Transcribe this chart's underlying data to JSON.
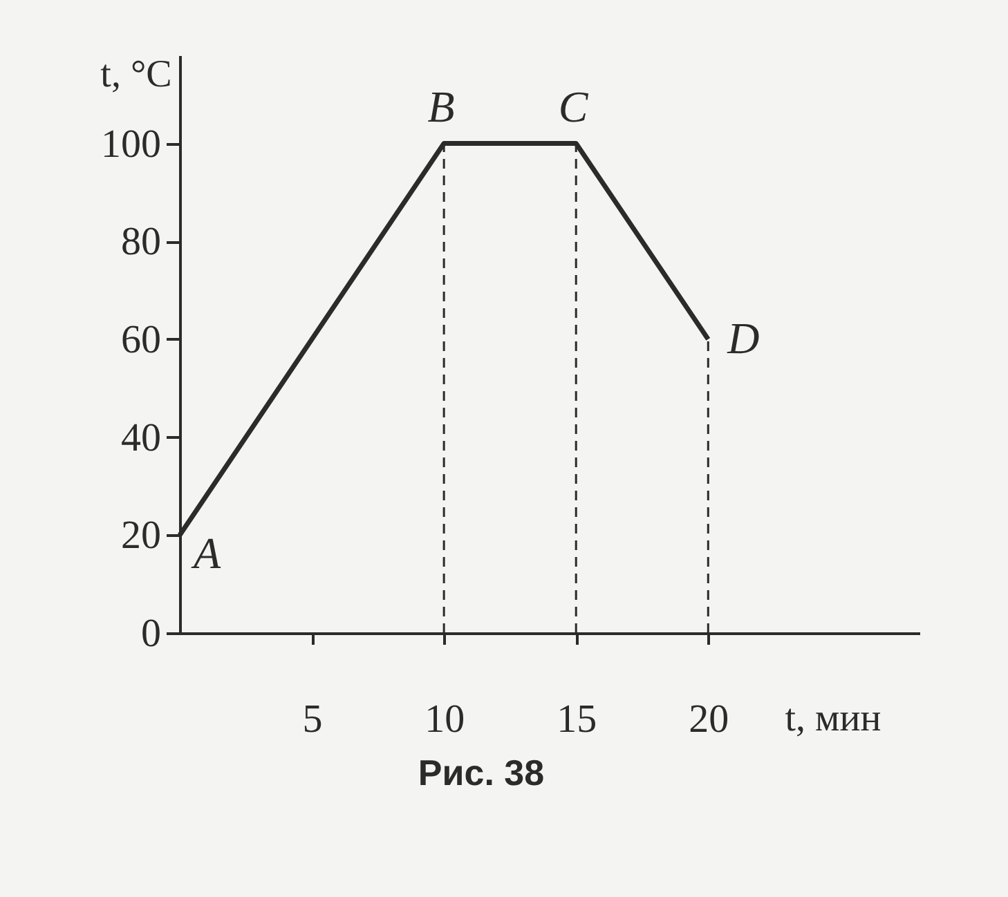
{
  "chart_data": {
    "type": "line",
    "xlabel": "t, мин",
    "ylabel": "t, °C",
    "x": [
      0,
      10,
      15,
      20
    ],
    "series": [
      {
        "color": "#2b2b2b",
        "values": [
          20,
          100,
          100,
          60
        ]
      }
    ],
    "xlim": [
      0,
      28
    ],
    "ylim": [
      0,
      118
    ],
    "xticks": [
      5,
      10,
      15,
      20
    ],
    "yticks": [
      0,
      20,
      40,
      60,
      80,
      100
    ],
    "line_style": "solid",
    "ref_lines": [
      {
        "axis": "x",
        "value": 10,
        "color": "#2b2b2b",
        "line_style": "dashed"
      },
      {
        "axis": "x",
        "value": 15,
        "color": "#2b2b2b",
        "line_style": "dashed"
      },
      {
        "axis": "x",
        "value": 20,
        "color": "#2b2b2b",
        "line_style": "dashed"
      }
    ],
    "annotations": [
      {
        "text": "A",
        "x": 0,
        "y": 20
      },
      {
        "text": "B",
        "x": 10,
        "y": 100
      },
      {
        "text": "C",
        "x": 15,
        "y": 100
      },
      {
        "text": "D",
        "x": 20,
        "y": 60
      },
      "Рис. 38"
    ]
  }
}
